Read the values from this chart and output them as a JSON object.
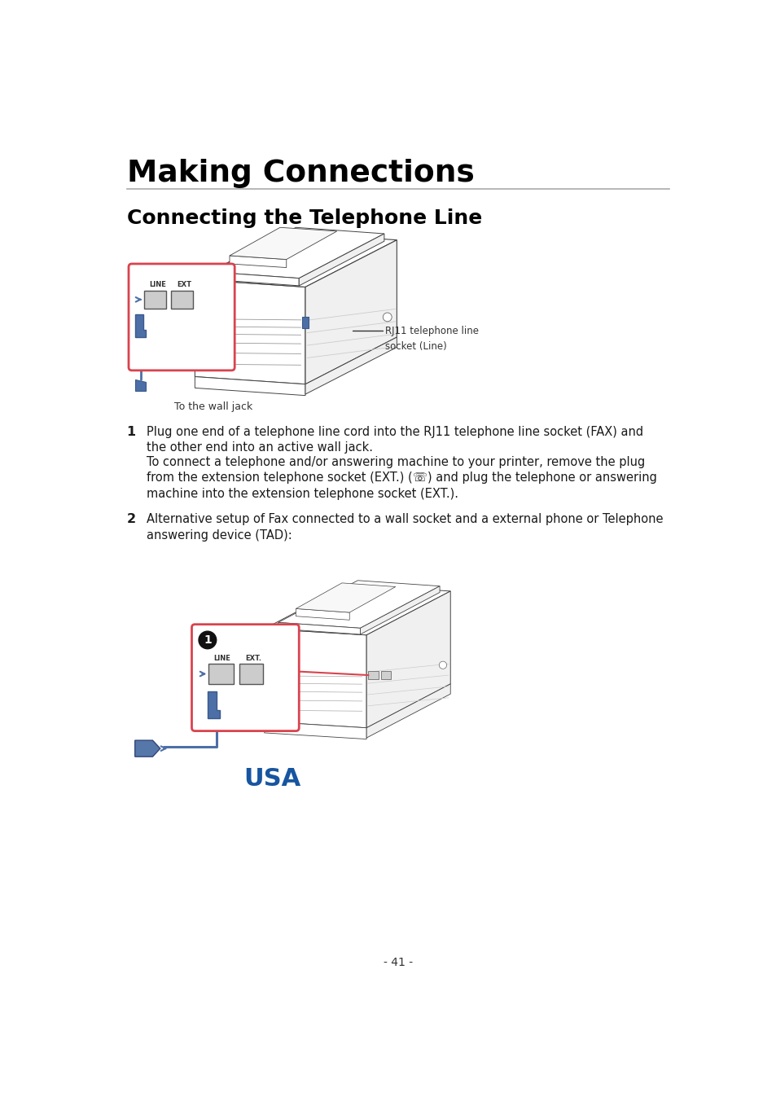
{
  "title": "Making Connections",
  "subtitle": "Connecting the Telephone Line",
  "body_text_1_bold": "1",
  "body_text_1a": "Plug one end of a telephone line cord into the RJ11 telephone line socket (FAX) and\nthe other end into an active wall jack.",
  "body_text_1b": "To connect a telephone and/or answering machine to your printer, remove the plug\nfrom the extension telephone socket (EXT.) (☏) and plug the telephone or answering\nmachine into the extension telephone socket (EXT.).",
  "body_text_2_bold": "2",
  "body_text_2": "Alternative setup of Fax connected to a wall socket and a external phone or Telephone\nanswering device (TAD):",
  "label_rj11_line1": "RJ11 telephone line",
  "label_rj11_line2": "socket (Line)",
  "label_wall": "To the wall jack",
  "label_usa": "USA",
  "page_number": "- 41 -",
  "bg_color": "#ffffff",
  "text_color": "#1a1a1a",
  "title_color": "#000000",
  "subtitle_color": "#000000",
  "usa_color": "#1755a0",
  "line_color": "#aaaaaa",
  "red_box_color": "#d9434e",
  "blue_color": "#4d6fa8",
  "dark_blue": "#3a5a8a",
  "printer_line": "#444444",
  "printer_fill": "#ffffff",
  "printer_side": "#f0f0f0"
}
